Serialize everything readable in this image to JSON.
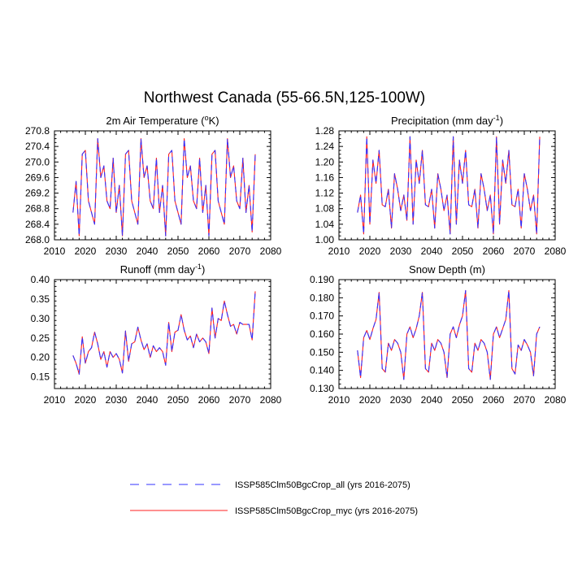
{
  "figure": {
    "title": "Northwest Canada (55-66.5N,125-100W)",
    "colors": {
      "series_all": "#3333ff",
      "series_myc": "#ff2222",
      "axis": "#000000"
    }
  },
  "legend": {
    "items": [
      {
        "label": "ISSP585Clm50BgcCrop_all (yrs 2016-2075)",
        "style": "dashed",
        "color": "#3333ff"
      },
      {
        "label": "ISSP585Clm50BgcCrop_myc (yrs 2016-2075)",
        "style": "solid",
        "color": "#ff2222"
      }
    ]
  },
  "chart_data": [
    {
      "type": "line",
      "title": "2m Air Temperature (",
      "title_sup": "o",
      "title_after": "K)",
      "xlim": [
        2010,
        2080
      ],
      "xticks": [
        2010,
        2020,
        2030,
        2040,
        2050,
        2060,
        2070,
        2080
      ],
      "ylim": [
        268.0,
        270.8
      ],
      "yticks": [
        "268.0",
        "268.4",
        "268.8",
        "269.2",
        "269.6",
        "270.0",
        "270.4",
        "270.8"
      ],
      "x_start": 2016,
      "series": [
        {
          "values": [
            268.7,
            269.5,
            268.1,
            270.2,
            270.3,
            269.0,
            268.7,
            268.4,
            270.6,
            269.6,
            269.9,
            269.0,
            268.8,
            270.1,
            268.7,
            269.4,
            268.1,
            270.2,
            270.3,
            269.0,
            268.7,
            268.4,
            270.6,
            269.6,
            269.9,
            269.0,
            268.8,
            270.1,
            268.7,
            269.4,
            268.1,
            270.2,
            270.3,
            269.0,
            268.7,
            268.4,
            270.6,
            269.6,
            269.9,
            269.0,
            268.8,
            270.1,
            268.7,
            269.4,
            268.1,
            270.2,
            270.3,
            269.0,
            268.7,
            268.4,
            270.6,
            269.6,
            269.9,
            269.0,
            268.8,
            270.1,
            268.7,
            269.4,
            268.2,
            270.2
          ]
        },
        {
          "values": [
            268.7,
            269.5,
            268.1,
            270.2,
            270.3,
            269.0,
            268.7,
            268.4,
            270.6,
            269.6,
            269.9,
            269.0,
            268.8,
            270.1,
            268.7,
            269.4,
            268.1,
            270.2,
            270.3,
            269.0,
            268.7,
            268.4,
            270.6,
            269.6,
            269.9,
            269.0,
            268.8,
            270.1,
            268.7,
            269.4,
            268.1,
            270.2,
            270.3,
            269.0,
            268.7,
            268.4,
            270.6,
            269.6,
            269.9,
            269.0,
            268.8,
            270.1,
            268.7,
            269.4,
            268.1,
            270.2,
            270.3,
            269.0,
            268.7,
            268.4,
            270.6,
            269.6,
            269.9,
            269.0,
            268.8,
            270.1,
            268.7,
            269.4,
            268.2,
            270.2
          ]
        }
      ]
    },
    {
      "type": "line",
      "title": "Precipitation (mm day",
      "title_sup": "-1",
      "title_after": ")",
      "xlim": [
        2010,
        2080
      ],
      "xticks": [
        2010,
        2020,
        2030,
        2040,
        2050,
        2060,
        2070,
        2080
      ],
      "ylim": [
        1.0,
        1.28
      ],
      "yticks": [
        "1.00",
        "1.04",
        "1.08",
        "1.12",
        "1.16",
        "1.20",
        "1.24",
        "1.28"
      ],
      "x_start": 2016,
      "series": [
        {
          "values": [
            1.07,
            1.115,
            1.015,
            1.265,
            1.04,
            1.205,
            1.145,
            1.23,
            1.09,
            1.085,
            1.13,
            1.03,
            1.17,
            1.13,
            1.075,
            1.115,
            1.05,
            1.265,
            1.04,
            1.205,
            1.145,
            1.23,
            1.09,
            1.085,
            1.13,
            1.03,
            1.17,
            1.13,
            1.075,
            1.115,
            1.015,
            1.265,
            1.04,
            1.205,
            1.145,
            1.23,
            1.09,
            1.085,
            1.13,
            1.03,
            1.17,
            1.13,
            1.075,
            1.115,
            1.015,
            1.265,
            1.04,
            1.205,
            1.145,
            1.23,
            1.09,
            1.085,
            1.13,
            1.03,
            1.17,
            1.13,
            1.075,
            1.115,
            1.015,
            1.265
          ]
        },
        {
          "values": [
            1.07,
            1.115,
            1.015,
            1.265,
            1.04,
            1.205,
            1.145,
            1.23,
            1.09,
            1.085,
            1.13,
            1.03,
            1.17,
            1.13,
            1.075,
            1.115,
            1.05,
            1.265,
            1.04,
            1.205,
            1.145,
            1.23,
            1.09,
            1.085,
            1.13,
            1.03,
            1.17,
            1.13,
            1.075,
            1.115,
            1.015,
            1.265,
            1.04,
            1.205,
            1.145,
            1.23,
            1.09,
            1.085,
            1.13,
            1.03,
            1.17,
            1.13,
            1.075,
            1.115,
            1.015,
            1.265,
            1.04,
            1.205,
            1.145,
            1.23,
            1.09,
            1.085,
            1.13,
            1.03,
            1.17,
            1.13,
            1.075,
            1.115,
            1.015,
            1.265
          ]
        }
      ]
    },
    {
      "type": "line",
      "title": "Runoff (mm day",
      "title_sup": "-1",
      "title_after": ")",
      "xlim": [
        2010,
        2080
      ],
      "xticks": [
        2010,
        2020,
        2030,
        2040,
        2050,
        2060,
        2070,
        2080
      ],
      "ylim": [
        0.12,
        0.4
      ],
      "yticks": [
        "0.15",
        "0.20",
        "0.25",
        "0.30",
        "0.35",
        "0.40"
      ],
      "x_start": 2016,
      "series": [
        {
          "values": [
            0.205,
            0.185,
            0.157,
            0.253,
            0.185,
            0.215,
            0.225,
            0.265,
            0.235,
            0.195,
            0.215,
            0.175,
            0.215,
            0.2,
            0.21,
            0.195,
            0.16,
            0.268,
            0.19,
            0.235,
            0.24,
            0.278,
            0.245,
            0.22,
            0.235,
            0.2,
            0.23,
            0.215,
            0.225,
            0.215,
            0.18,
            0.29,
            0.215,
            0.265,
            0.27,
            0.31,
            0.27,
            0.245,
            0.255,
            0.225,
            0.26,
            0.24,
            0.25,
            0.24,
            0.21,
            0.327,
            0.25,
            0.3,
            0.295,
            0.345,
            0.31,
            0.28,
            0.285,
            0.26,
            0.29,
            0.285,
            0.285,
            0.285,
            0.245,
            0.37
          ]
        },
        {
          "values": [
            0.205,
            0.185,
            0.157,
            0.253,
            0.185,
            0.215,
            0.225,
            0.265,
            0.235,
            0.195,
            0.215,
            0.175,
            0.215,
            0.2,
            0.21,
            0.195,
            0.16,
            0.268,
            0.19,
            0.235,
            0.24,
            0.278,
            0.245,
            0.22,
            0.235,
            0.2,
            0.23,
            0.215,
            0.225,
            0.215,
            0.18,
            0.29,
            0.215,
            0.265,
            0.27,
            0.31,
            0.27,
            0.245,
            0.255,
            0.225,
            0.26,
            0.24,
            0.25,
            0.24,
            0.21,
            0.327,
            0.25,
            0.3,
            0.295,
            0.345,
            0.31,
            0.28,
            0.285,
            0.26,
            0.29,
            0.285,
            0.285,
            0.285,
            0.245,
            0.37
          ]
        }
      ]
    },
    {
      "type": "line",
      "title": "Snow Depth (m)",
      "title_sup": "",
      "title_after": "",
      "xlim": [
        2010,
        2080
      ],
      "xticks": [
        2010,
        2020,
        2030,
        2040,
        2050,
        2060,
        2070,
        2080
      ],
      "ylim": [
        0.13,
        0.19
      ],
      "yticks": [
        "0.130",
        "0.140",
        "0.150",
        "0.160",
        "0.170",
        "0.180",
        "0.190"
      ],
      "x_start": 2016,
      "series": [
        {
          "values": [
            0.151,
            0.136,
            0.158,
            0.162,
            0.157,
            0.163,
            0.168,
            0.183,
            0.141,
            0.139,
            0.155,
            0.151,
            0.157,
            0.155,
            0.15,
            0.135,
            0.16,
            0.164,
            0.158,
            0.163,
            0.17,
            0.183,
            0.141,
            0.139,
            0.155,
            0.151,
            0.157,
            0.155,
            0.15,
            0.136,
            0.16,
            0.164,
            0.158,
            0.165,
            0.17,
            0.184,
            0.141,
            0.139,
            0.155,
            0.151,
            0.157,
            0.155,
            0.15,
            0.135,
            0.16,
            0.164,
            0.158,
            0.163,
            0.168,
            0.184,
            0.141,
            0.138,
            0.154,
            0.151,
            0.157,
            0.154,
            0.15,
            0.137,
            0.16,
            0.164
          ]
        },
        {
          "values": [
            0.151,
            0.136,
            0.158,
            0.162,
            0.157,
            0.163,
            0.168,
            0.183,
            0.141,
            0.139,
            0.155,
            0.151,
            0.157,
            0.155,
            0.15,
            0.135,
            0.16,
            0.164,
            0.158,
            0.163,
            0.17,
            0.183,
            0.141,
            0.139,
            0.155,
            0.151,
            0.157,
            0.155,
            0.15,
            0.136,
            0.16,
            0.164,
            0.158,
            0.165,
            0.17,
            0.184,
            0.141,
            0.139,
            0.155,
            0.151,
            0.157,
            0.155,
            0.15,
            0.135,
            0.16,
            0.164,
            0.158,
            0.163,
            0.168,
            0.184,
            0.141,
            0.138,
            0.154,
            0.151,
            0.157,
            0.154,
            0.15,
            0.137,
            0.16,
            0.164
          ]
        }
      ]
    }
  ]
}
